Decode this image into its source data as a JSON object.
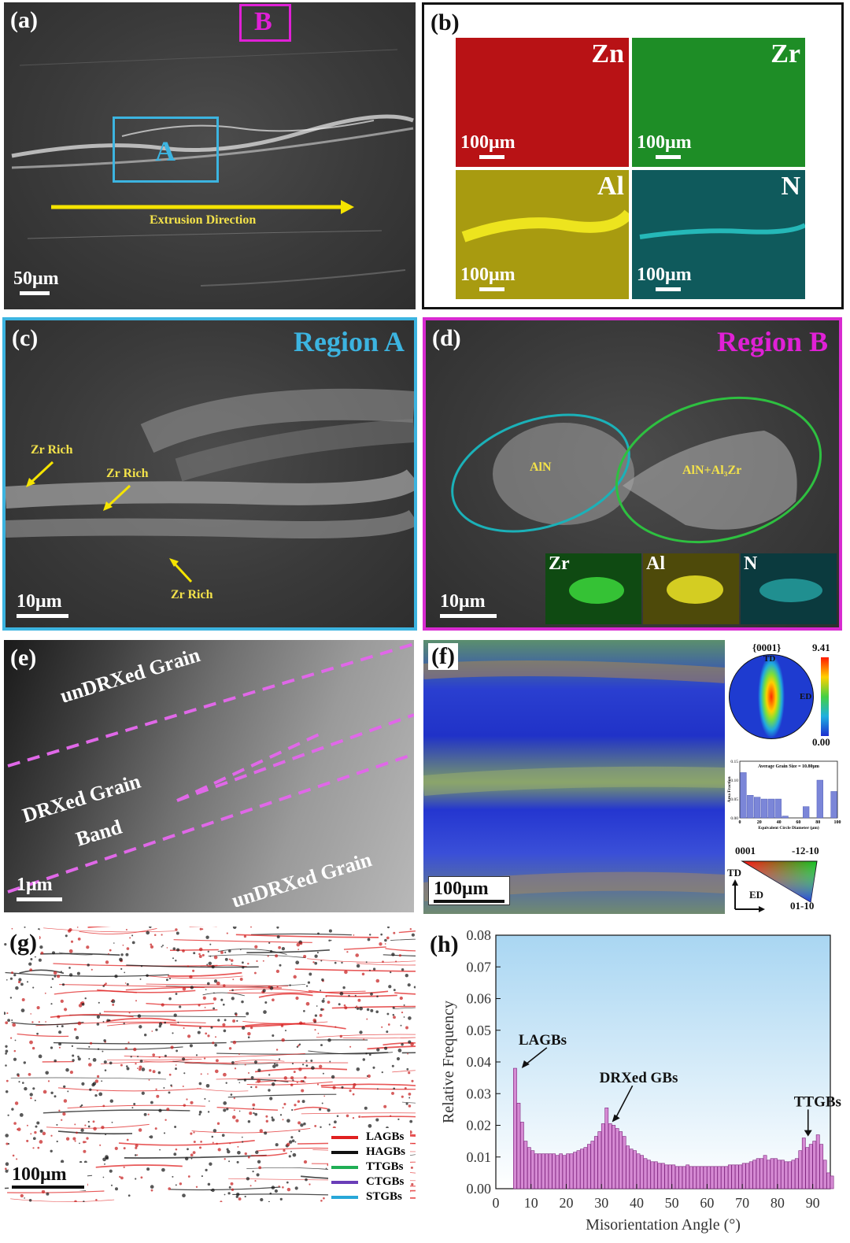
{
  "panel_a": {
    "label": "(a)",
    "box_a": "A",
    "box_b": "B",
    "arrow_text": "Extrusion Direction",
    "scale": "50μm"
  },
  "panel_b": {
    "label": "(b)",
    "maps": [
      {
        "element": "Zn",
        "scale": "100μm",
        "color": "#c0181a"
      },
      {
        "element": "Zr",
        "scale": "100μm",
        "color": "#1f9a2a"
      },
      {
        "element": "Al",
        "scale": "100μm",
        "color": "#b6a90f"
      },
      {
        "element": "N",
        "scale": "100μm",
        "color": "#1b8c8c"
      }
    ]
  },
  "panel_c": {
    "label": "(c)",
    "region": "Region A",
    "annotations": [
      "Zr Rich",
      "Zr Rich",
      "Zr Rich"
    ],
    "scale": "10μm"
  },
  "panel_d": {
    "label": "(d)",
    "region": "Region B",
    "ellipse1": "AlN",
    "ellipse2": "AlN+Al₃Zr",
    "insets": [
      "Zr",
      "Al",
      "N"
    ],
    "scale": "10μm"
  },
  "panel_e": {
    "label": "(e)",
    "texts": [
      "unDRXed Grain",
      "DRXed Grain",
      "Band",
      "unDRXed Grain"
    ],
    "scale": "1μm"
  },
  "panel_f": {
    "label": "(f)",
    "scale": "100μm",
    "pole": "{0001}",
    "td": "TD",
    "ed": "ED",
    "cbar_max": "9.41",
    "cbar_min": "0.00",
    "hist_title": "Average Grain Size = 10.80μm",
    "hist_xlabel": "Equivalent Circle Diameter (μm)",
    "hist_ylabel": "Area Fraction",
    "hist_yticks": [
      "0.15",
      "0.10",
      "0.05",
      "0.00"
    ],
    "hist_xticks": [
      "0",
      "20",
      "40",
      "60",
      "80",
      "100"
    ],
    "hist_values": [
      0.12,
      0.06,
      0.055,
      0.05,
      0.05,
      0.05,
      0.005,
      0,
      0,
      0.03,
      0,
      0.1,
      0,
      0.07
    ],
    "ipf_labels": [
      "0001",
      "-12-10",
      "01-10"
    ],
    "axes_td": "TD",
    "axes_ed": "ED"
  },
  "panel_g": {
    "label": "(g)",
    "scale": "100μm",
    "legend": [
      {
        "name": "LAGBs",
        "color": "#e02020"
      },
      {
        "name": "HAGBs",
        "color": "#111111"
      },
      {
        "name": "TTGBs",
        "color": "#1fae55"
      },
      {
        "name": "CTGBs",
        "color": "#6a3db8"
      },
      {
        "name": "STGBs",
        "color": "#28a7d8"
      }
    ]
  },
  "chart_data": {
    "type": "bar",
    "title": "(h)",
    "xlabel": "Misorientation Angle (°)",
    "ylabel": "Relative Frequency",
    "xlim": [
      0,
      95
    ],
    "ylim": [
      0,
      0.08
    ],
    "xticks": [
      "0",
      "10",
      "20",
      "30",
      "40",
      "50",
      "60",
      "70",
      "80",
      "90"
    ],
    "yticks": [
      "0.00",
      "0.01",
      "0.02",
      "0.03",
      "0.04",
      "0.05",
      "0.06",
      "0.07",
      "0.08"
    ],
    "annotations": [
      {
        "text": "LAGBs",
        "x": 6
      },
      {
        "text": "DRXed GBs",
        "x": 33
      },
      {
        "text": "TTGBs",
        "x": 86
      }
    ],
    "bin_start": 5,
    "bin_width": 1,
    "values": [
      0.038,
      0.027,
      0.021,
      0.015,
      0.013,
      0.012,
      0.011,
      0.011,
      0.011,
      0.011,
      0.011,
      0.011,
      0.0105,
      0.011,
      0.0105,
      0.011,
      0.011,
      0.0115,
      0.012,
      0.0125,
      0.013,
      0.014,
      0.015,
      0.0165,
      0.018,
      0.0205,
      0.0255,
      0.0205,
      0.02,
      0.019,
      0.018,
      0.0165,
      0.0135,
      0.0125,
      0.012,
      0.011,
      0.0105,
      0.0095,
      0.009,
      0.0085,
      0.0085,
      0.008,
      0.008,
      0.0075,
      0.0075,
      0.0075,
      0.007,
      0.007,
      0.007,
      0.0075,
      0.007,
      0.007,
      0.007,
      0.007,
      0.007,
      0.007,
      0.007,
      0.007,
      0.007,
      0.007,
      0.007,
      0.0075,
      0.0075,
      0.0075,
      0.0075,
      0.008,
      0.008,
      0.0085,
      0.009,
      0.0095,
      0.0095,
      0.0105,
      0.009,
      0.0095,
      0.0095,
      0.009,
      0.009,
      0.0085,
      0.0085,
      0.009,
      0.0095,
      0.012,
      0.016,
      0.013,
      0.014,
      0.015,
      0.017,
      0.014,
      0.009,
      0.005,
      0.004
    ]
  }
}
